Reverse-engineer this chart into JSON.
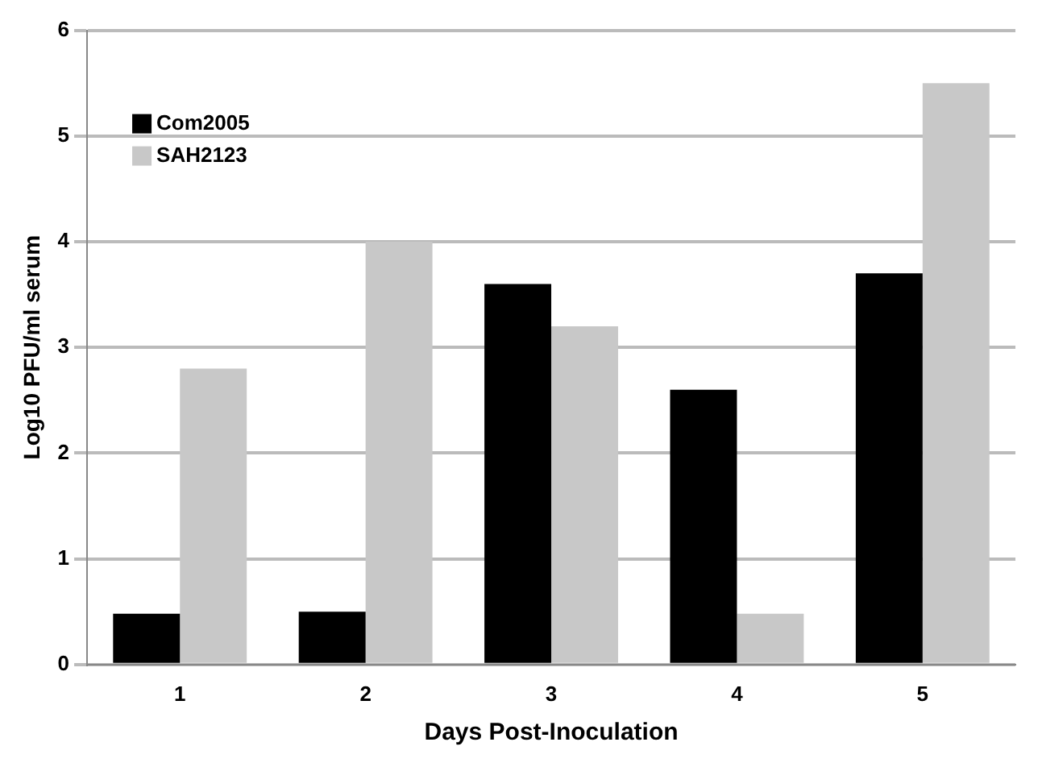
{
  "chart_data": {
    "type": "bar",
    "xlabel": "Days Post-Inoculation",
    "ylabel": "Log10 PFU/ml serum",
    "categories": [
      "1",
      "2",
      "3",
      "4",
      "5"
    ],
    "series": [
      {
        "name": "Com2005",
        "color": "#000000",
        "values": [
          0.48,
          0.5,
          3.6,
          2.6,
          3.7
        ]
      },
      {
        "name": "SAH2123",
        "color": "#c8c8c8",
        "values": [
          2.8,
          4.0,
          3.2,
          0.48,
          5.5
        ]
      }
    ],
    "ylim": [
      0,
      6
    ],
    "yticks": [
      0,
      1,
      2,
      3,
      4,
      5,
      6
    ],
    "grid": "y",
    "legend": "top left"
  }
}
